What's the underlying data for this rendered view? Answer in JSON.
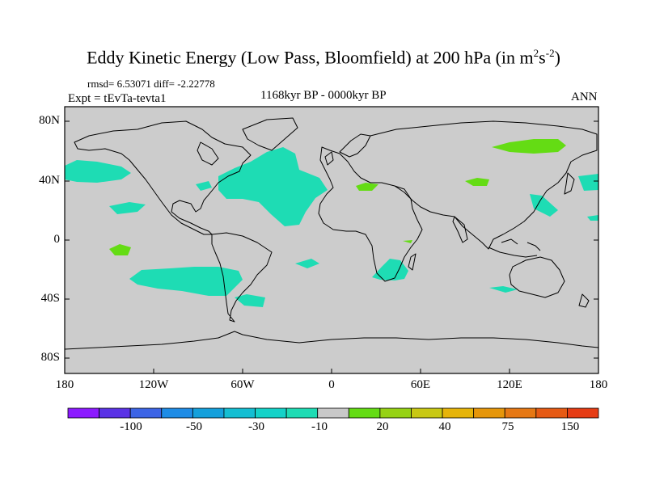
{
  "title": {
    "main": "Eddy Kinetic Energy (Low Pass, Bloomfield) at 200 hPa (in m",
    "sup1": "2",
    "mid": "s",
    "sup2": "-2",
    "end": ")"
  },
  "stats": "rmsd= 6.53071 diff= -2.22778",
  "expt": "Expt = tEvTa-tevta1",
  "period": "1168kyr BP - 0000kyr BP",
  "season": "ANN",
  "lat_labels": [
    "80N",
    "40N",
    "0",
    "40S",
    "80S"
  ],
  "lon_labels": [
    "180",
    "120W",
    "60W",
    "0",
    "60E",
    "120E",
    "180"
  ],
  "colorbar": {
    "labels": [
      "-100",
      "-50",
      "-30",
      "-10",
      "20",
      "40",
      "75",
      "150"
    ],
    "colors": [
      "#8c1aff",
      "#5a32e6",
      "#3c64e6",
      "#1e8ce6",
      "#14a0dc",
      "#14bed2",
      "#14d2c8",
      "#1edcb4",
      "#c8c8c8",
      "#64dc14",
      "#96d214",
      "#c8c814",
      "#e6b40a",
      "#e6960a",
      "#e67814",
      "#e65a14",
      "#e63c14"
    ]
  },
  "map_colors": {
    "background": "#cccccc",
    "negative_patch": "#1edcb4",
    "positive_patch": "#64dc14"
  }
}
